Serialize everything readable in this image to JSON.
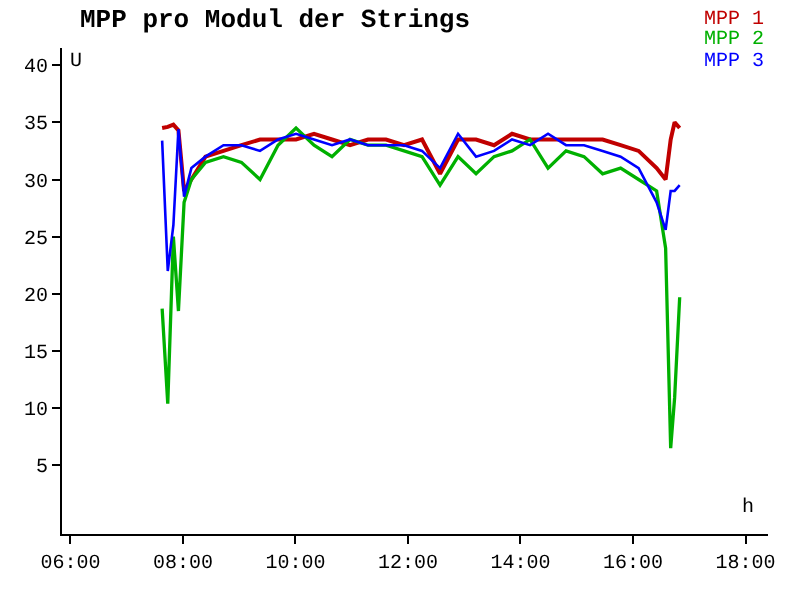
{
  "chart_data": {
    "type": "line",
    "title": "MPP pro Modul der Strings",
    "xlabel": "h",
    "ylabel": "U",
    "x": [
      7.63,
      7.73,
      7.83,
      7.92,
      8.02,
      8.15,
      8.4,
      8.72,
      9.04,
      9.37,
      9.69,
      10.01,
      10.33,
      10.65,
      10.97,
      11.29,
      11.61,
      11.93,
      12.25,
      12.57,
      12.89,
      13.21,
      13.53,
      13.85,
      14.17,
      14.49,
      14.81,
      15.13,
      15.46,
      15.78,
      16.1,
      16.42,
      16.58,
      16.67,
      16.74,
      16.83
    ],
    "series": [
      {
        "name": "MPP 1",
        "color": "#c00000",
        "values": [
          34.5,
          34.6,
          34.8,
          34.3,
          29,
          30,
          32,
          32.5,
          33,
          33.5,
          33.5,
          33.5,
          34,
          33.5,
          33,
          33.5,
          33.5,
          33,
          33.5,
          30.5,
          33.5,
          33.5,
          33,
          34,
          33.5,
          33.5,
          33.5,
          33.5,
          33.5,
          33,
          32.5,
          31,
          30,
          33.5,
          35,
          34.5
        ]
      },
      {
        "name": "MPP 2",
        "color": "#00b000",
        "values": [
          18.7,
          10.4,
          25,
          18.5,
          28,
          30,
          31.5,
          32,
          31.5,
          30,
          33,
          34.5,
          33,
          32,
          33.5,
          33,
          33,
          32.5,
          32,
          29.5,
          32,
          30.5,
          32,
          32.5,
          33.5,
          31,
          32.5,
          32,
          30.5,
          31,
          30,
          29,
          24,
          6.5,
          10.9,
          19.7
        ]
      },
      {
        "name": "MPP 3",
        "color": "#0000ff",
        "values": [
          33.4,
          22,
          26,
          34.4,
          28.5,
          31,
          32,
          33,
          33,
          32.5,
          33.5,
          34,
          33.5,
          33,
          33.5,
          33,
          33,
          33,
          32.5,
          31,
          34,
          32,
          32.5,
          33.5,
          33,
          34,
          33,
          33,
          32.5,
          32,
          31,
          28,
          25.6,
          29,
          29,
          29.5
        ]
      }
    ],
    "xlim": [
      5.85,
      18.4
    ],
    "ylim": [
      -1,
      41.5
    ],
    "xticks": [
      {
        "value": 6,
        "label": "06:00"
      },
      {
        "value": 8,
        "label": "08:00"
      },
      {
        "value": 10,
        "label": "10:00"
      },
      {
        "value": 12,
        "label": "12:00"
      },
      {
        "value": 14,
        "label": "14:00"
      },
      {
        "value": 16,
        "label": "16:00"
      },
      {
        "value": 18,
        "label": "18:00"
      }
    ],
    "yticks": [
      5,
      10,
      15,
      20,
      25,
      30,
      35,
      40
    ],
    "legend": "top right",
    "marker": "none",
    "line_style": "solid"
  }
}
